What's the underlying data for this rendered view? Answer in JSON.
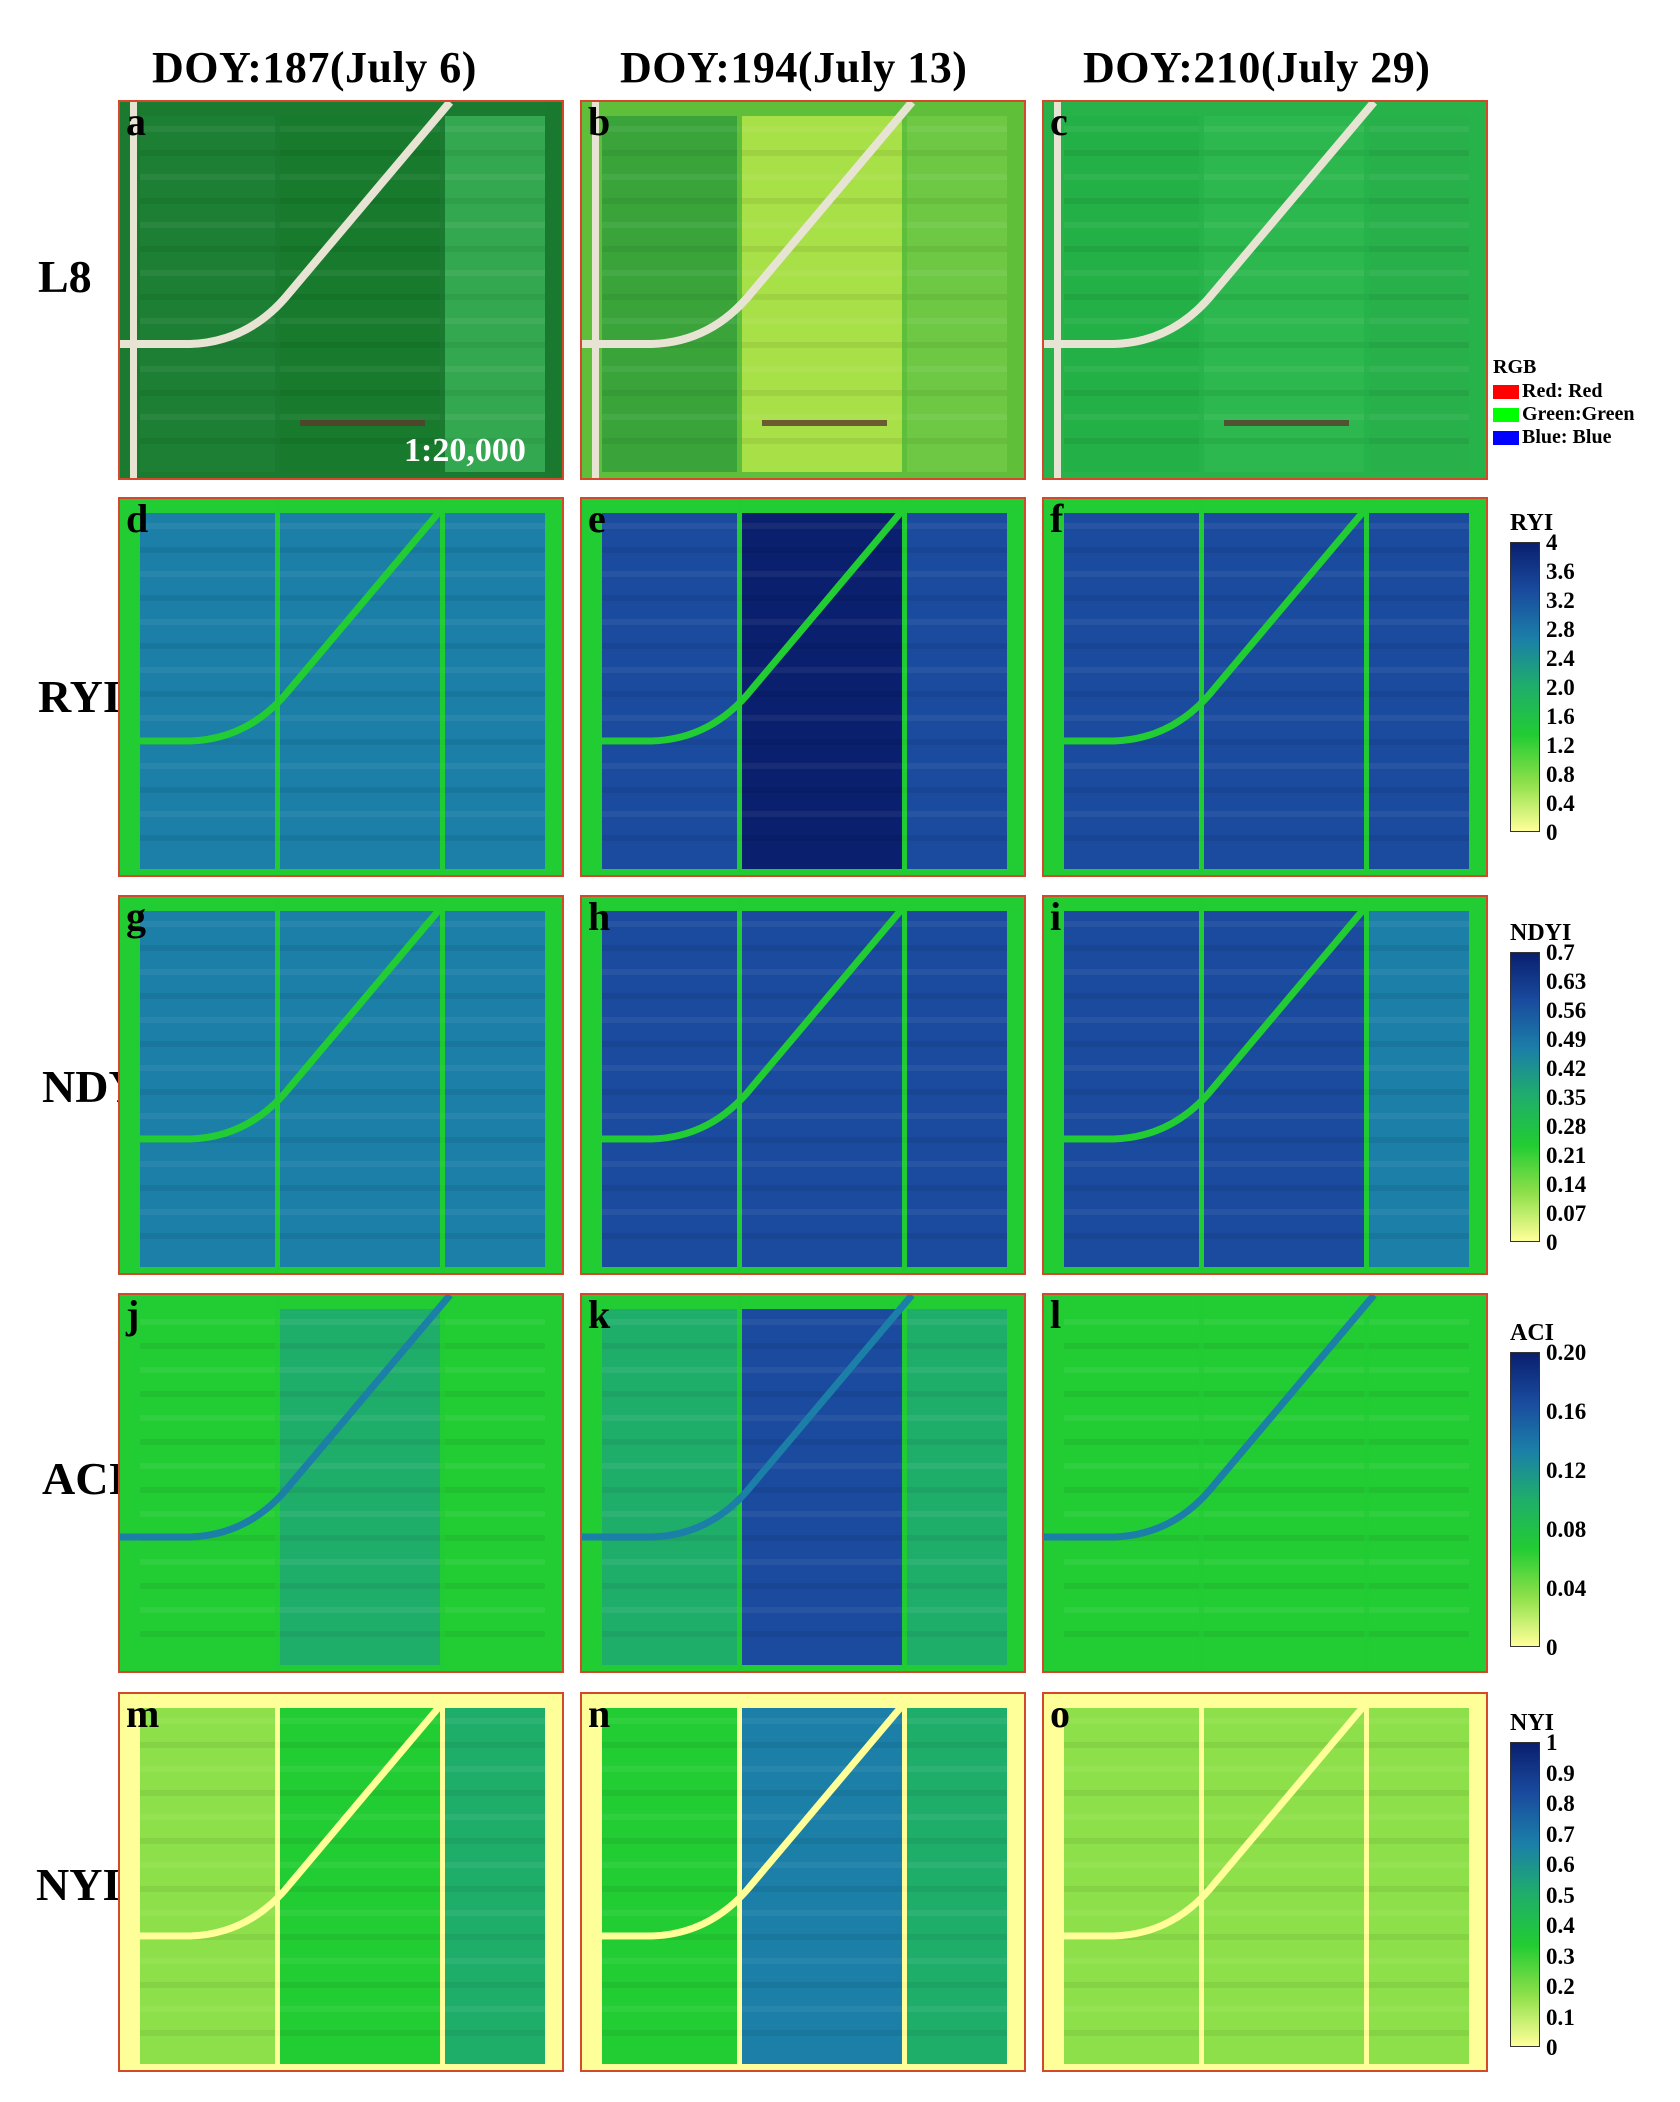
{
  "columns": [
    {
      "label": "DOY:187(July 6)"
    },
    {
      "label": "DOY:194(July 13)"
    },
    {
      "label": "DOY:210(July 29)"
    }
  ],
  "rows": [
    {
      "label": "L8",
      "letters": [
        "a",
        "b",
        "c"
      ]
    },
    {
      "label": "RYI",
      "letters": [
        "d",
        "e",
        "f"
      ]
    },
    {
      "label": "NDYI",
      "letters": [
        "g",
        "h",
        "i"
      ]
    },
    {
      "label": "ACI",
      "letters": [
        "j",
        "k",
        "l"
      ]
    },
    {
      "label": "NYI",
      "letters": [
        "m",
        "n",
        "o"
      ]
    }
  ],
  "scale_text": "1:20,000",
  "rgb_legend": {
    "title": "RGB",
    "items": [
      {
        "label": "Red: Red",
        "color": "#ff0000"
      },
      {
        "label": "Green:Green",
        "color": "#00ff00"
      },
      {
        "label": "Blue: Blue",
        "color": "#0000ff"
      }
    ]
  },
  "colorbars": [
    {
      "title": "RYI",
      "ticks": [
        "4",
        "3.6",
        "3.2",
        "2.8",
        "2.4",
        "2.0",
        "1.6",
        "1.2",
        "0.8",
        "0.4",
        "0"
      ]
    },
    {
      "title": "NDYI",
      "ticks": [
        "0.7",
        "0.63",
        "0.56",
        "0.49",
        "0.42",
        "0.35",
        "0.28",
        "0.21",
        "0.14",
        "0.07",
        "0"
      ]
    },
    {
      "title": "ACI",
      "ticks": [
        "0.20",
        "0.16",
        "0.12",
        "0.08",
        "0.04",
        "0"
      ]
    },
    {
      "title": "NYI",
      "ticks": [
        "1",
        "0.9",
        "0.8",
        "0.7",
        "0.6",
        "0.5",
        "0.4",
        "0.3",
        "0.2",
        "0.1",
        "0"
      ]
    }
  ],
  "colormap": [
    "#ffff99",
    "#8ee04a",
    "#22cc33",
    "#1fae6a",
    "#1b7fa8",
    "#1a4b9e",
    "#0a1f6e"
  ]
}
